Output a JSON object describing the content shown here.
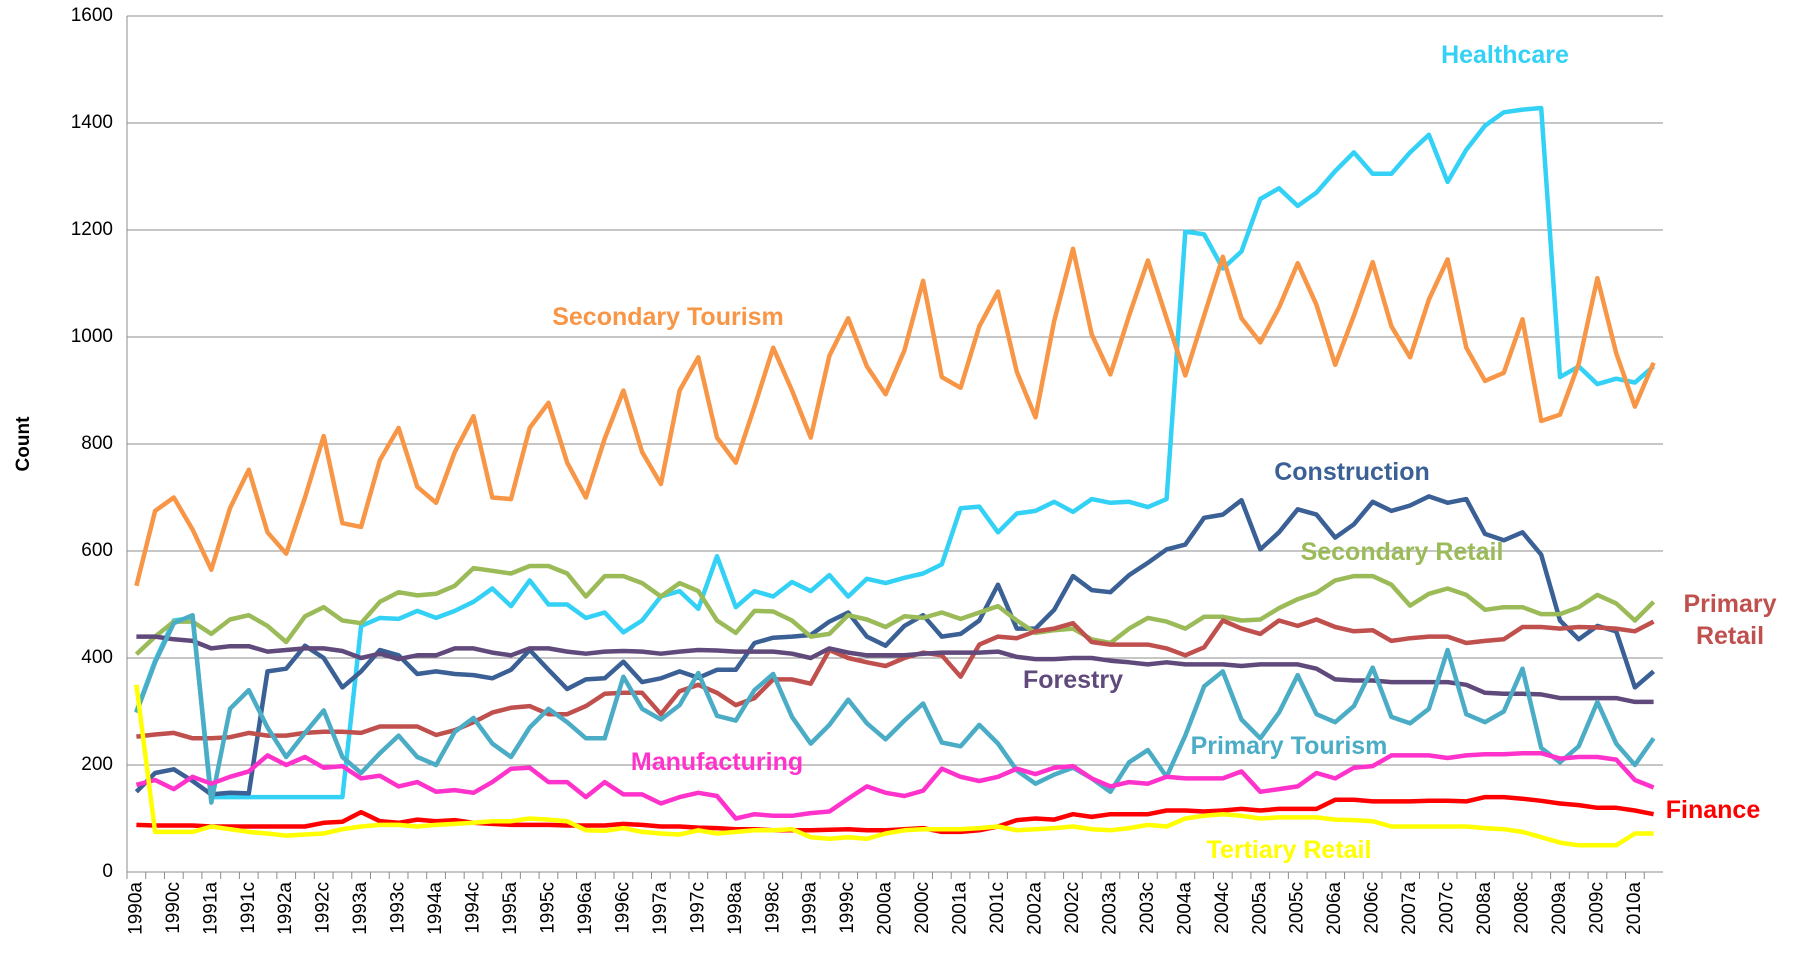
{
  "chart_data": {
    "type": "line",
    "y_label": "Count",
    "ylim": [
      0,
      1600
    ],
    "yticks": [
      0,
      200,
      400,
      600,
      800,
      1000,
      1200,
      1400,
      1600
    ],
    "grid": true,
    "categories": [
      "1990a",
      null,
      "1990c",
      null,
      "1991a",
      null,
      "1991c",
      null,
      "1992a",
      null,
      "1992c",
      null,
      "1993a",
      null,
      "1993c",
      null,
      "1994a",
      null,
      "1994c",
      null,
      "1995a",
      null,
      "1995c",
      null,
      "1996a",
      null,
      "1996c",
      null,
      "1997a",
      null,
      "1997c",
      null,
      "1998a",
      null,
      "1998c",
      null,
      "1999a",
      null,
      "1999c",
      null,
      "2000a",
      null,
      "2000c",
      null,
      "2001a",
      null,
      "2001c",
      null,
      "2002a",
      null,
      "2002c",
      null,
      "2003a",
      null,
      "2003c",
      null,
      "2004a",
      null,
      "2004c",
      null,
      "2005a",
      null,
      "2005c",
      null,
      "2006a",
      null,
      "2006c",
      null,
      "2007a",
      null,
      "2007c",
      null,
      "2008a",
      null,
      "2008c",
      null,
      "2009a",
      null,
      "2009c",
      null,
      "2010a",
      null
    ],
    "series": [
      {
        "name": "Healthcare",
        "color": "#33d1f5",
        "values": [
          300,
          395,
          470,
          475,
          140,
          140,
          140,
          140,
          140,
          140,
          140,
          140,
          460,
          475,
          473,
          488,
          475,
          488,
          505,
          530,
          497,
          545,
          500,
          500,
          475,
          485,
          448,
          470,
          515,
          525,
          492,
          590,
          495,
          525,
          515,
          542,
          525,
          555,
          515,
          548,
          540,
          550,
          558,
          575,
          680,
          683,
          635,
          670,
          675,
          692,
          673,
          697,
          690,
          692,
          682,
          697,
          1197,
          1192,
          1128,
          1160,
          1258,
          1278,
          1245,
          1270,
          1310,
          1345,
          1305,
          1305,
          1345,
          1378,
          1290,
          1350,
          1395,
          1420,
          1425,
          1428,
          925,
          945,
          912,
          922,
          915,
          945
        ]
      },
      {
        "name": "Secondary Tourism",
        "color": "#f79646",
        "values": [
          535,
          675,
          700,
          640,
          565,
          680,
          752,
          635,
          595,
          700,
          815,
          652,
          645,
          770,
          830,
          720,
          690,
          785,
          852,
          700,
          697,
          830,
          877,
          765,
          700,
          810,
          900,
          785,
          725,
          900,
          962,
          812,
          765,
          870,
          980,
          900,
          812,
          965,
          1035,
          945,
          893,
          975,
          1105,
          925,
          905,
          1020,
          1085,
          935,
          850,
          1030,
          1165,
          1005,
          930,
          1040,
          1143,
          1035,
          928,
          1040,
          1150,
          1035,
          990,
          1055,
          1138,
          1060,
          948,
          1040,
          1140,
          1020,
          962,
          1070,
          1145,
          980,
          918,
          933,
          1033,
          843,
          855,
          950,
          1110,
          970,
          870,
          952
        ]
      },
      {
        "name": "Construction",
        "color": "#3a6095",
        "values": [
          150,
          185,
          192,
          170,
          145,
          148,
          147,
          375,
          380,
          423,
          400,
          345,
          375,
          415,
          405,
          370,
          375,
          370,
          368,
          362,
          378,
          415,
          378,
          342,
          360,
          362,
          393,
          355,
          362,
          375,
          363,
          378,
          378,
          428,
          438,
          440,
          443,
          468,
          485,
          440,
          423,
          460,
          480,
          440,
          445,
          470,
          537,
          455,
          455,
          490,
          553,
          527,
          523,
          555,
          578,
          603,
          612,
          662,
          668,
          695,
          603,
          635,
          678,
          668,
          625,
          650,
          692,
          675,
          685,
          702,
          690,
          697,
          632,
          620,
          635,
          593,
          470,
          435,
          460,
          450,
          345,
          375
        ]
      },
      {
        "name": "Secondary Retail",
        "color": "#9bbb59",
        "values": [
          407,
          440,
          468,
          468,
          445,
          472,
          480,
          460,
          430,
          478,
          495,
          470,
          465,
          505,
          523,
          517,
          520,
          535,
          568,
          563,
          558,
          572,
          572,
          558,
          515,
          553,
          553,
          540,
          515,
          540,
          525,
          470,
          447,
          488,
          487,
          470,
          440,
          445,
          480,
          472,
          458,
          478,
          475,
          485,
          473,
          485,
          497,
          470,
          447,
          452,
          455,
          435,
          428,
          455,
          475,
          468,
          455,
          477,
          477,
          470,
          472,
          493,
          510,
          522,
          545,
          553,
          553,
          537,
          498,
          520,
          530,
          518,
          490,
          495,
          495,
          482,
          482,
          495,
          518,
          502,
          470,
          505
        ]
      },
      {
        "name": "Primary Retail",
        "color": "#c0504d",
        "values": [
          253,
          257,
          260,
          250,
          250,
          252,
          260,
          255,
          255,
          260,
          262,
          262,
          260,
          272,
          272,
          272,
          256,
          265,
          280,
          298,
          307,
          310,
          295,
          295,
          310,
          333,
          335,
          335,
          295,
          338,
          350,
          335,
          312,
          325,
          360,
          360,
          352,
          415,
          400,
          392,
          385,
          400,
          410,
          405,
          365,
          425,
          440,
          437,
          450,
          455,
          465,
          430,
          425,
          425,
          425,
          418,
          405,
          420,
          470,
          455,
          445,
          470,
          460,
          472,
          458,
          450,
          452,
          432,
          437,
          440,
          440,
          428,
          432,
          435,
          458,
          458,
          455,
          458,
          457,
          455,
          450,
          468
        ]
      },
      {
        "name": "Forestry",
        "color": "#604a7b",
        "values": [
          440,
          440,
          435,
          432,
          418,
          422,
          422,
          412,
          415,
          418,
          418,
          413,
          400,
          408,
          398,
          405,
          405,
          418,
          418,
          410,
          405,
          418,
          418,
          412,
          408,
          412,
          413,
          412,
          408,
          412,
          415,
          414,
          412,
          412,
          412,
          408,
          400,
          418,
          410,
          405,
          405,
          405,
          408,
          410,
          410,
          410,
          412,
          402,
          398,
          398,
          400,
          400,
          395,
          392,
          388,
          392,
          388,
          388,
          388,
          385,
          388,
          388,
          388,
          380,
          360,
          358,
          358,
          355,
          355,
          355,
          355,
          350,
          335,
          333,
          333,
          332,
          325,
          325,
          325,
          325,
          318,
          318
        ]
      },
      {
        "name": "Primary Tourism",
        "color": "#4bacc6",
        "values": [
          298,
          392,
          465,
          480,
          130,
          305,
          340,
          270,
          215,
          260,
          302,
          215,
          185,
          222,
          255,
          215,
          200,
          262,
          288,
          240,
          215,
          270,
          305,
          280,
          250,
          250,
          365,
          305,
          285,
          312,
          372,
          292,
          283,
          340,
          370,
          290,
          240,
          275,
          322,
          278,
          248,
          283,
          315,
          242,
          235,
          275,
          240,
          190,
          165,
          182,
          195,
          175,
          150,
          205,
          228,
          178,
          255,
          347,
          375,
          285,
          250,
          298,
          368,
          295,
          280,
          310,
          382,
          290,
          278,
          305,
          415,
          295,
          280,
          300,
          380,
          232,
          205,
          235,
          318,
          240,
          200,
          250
        ]
      },
      {
        "name": "Manufacturing",
        "color": "#ff33cc",
        "values": [
          163,
          172,
          155,
          178,
          165,
          178,
          188,
          218,
          200,
          215,
          195,
          198,
          175,
          180,
          160,
          168,
          150,
          153,
          148,
          168,
          193,
          195,
          168,
          168,
          140,
          168,
          145,
          145,
          128,
          140,
          148,
          142,
          100,
          108,
          105,
          105,
          110,
          113,
          137,
          160,
          148,
          142,
          152,
          193,
          178,
          170,
          178,
          193,
          183,
          195,
          198,
          175,
          160,
          168,
          165,
          178,
          175,
          175,
          175,
          188,
          150,
          155,
          160,
          185,
          175,
          195,
          198,
          218,
          218,
          218,
          213,
          218,
          220,
          220,
          222,
          222,
          212,
          215,
          215,
          210,
          172,
          158
        ]
      },
      {
        "name": "Finance",
        "color": "#ff0000",
        "values": [
          88,
          87,
          87,
          87,
          85,
          85,
          85,
          85,
          85,
          85,
          92,
          94,
          112,
          95,
          92,
          98,
          95,
          97,
          92,
          90,
          88,
          88,
          88,
          87,
          87,
          87,
          90,
          88,
          85,
          85,
          83,
          82,
          80,
          80,
          78,
          78,
          78,
          79,
          80,
          78,
          78,
          80,
          82,
          75,
          75,
          78,
          85,
          97,
          100,
          98,
          108,
          103,
          108,
          108,
          108,
          115,
          115,
          113,
          115,
          118,
          115,
          118,
          118,
          118,
          135,
          135,
          132,
          132,
          132,
          133,
          133,
          132,
          140,
          140,
          137,
          133,
          128,
          125,
          120,
          120,
          115,
          108
        ]
      },
      {
        "name": "Tertiary Retail",
        "color": "#ffff00",
        "values": [
          350,
          75,
          75,
          75,
          85,
          80,
          75,
          72,
          68,
          70,
          72,
          80,
          85,
          88,
          88,
          85,
          88,
          90,
          92,
          95,
          95,
          100,
          98,
          95,
          78,
          77,
          82,
          75,
          72,
          70,
          78,
          72,
          75,
          78,
          78,
          80,
          65,
          62,
          65,
          62,
          72,
          78,
          80,
          80,
          80,
          82,
          85,
          78,
          80,
          82,
          85,
          80,
          78,
          82,
          88,
          85,
          100,
          105,
          108,
          105,
          100,
          102,
          102,
          102,
          98,
          97,
          95,
          85,
          85,
          85,
          85,
          85,
          82,
          80,
          75,
          65,
          55,
          50,
          50,
          50,
          72,
          72
        ]
      }
    ]
  }
}
